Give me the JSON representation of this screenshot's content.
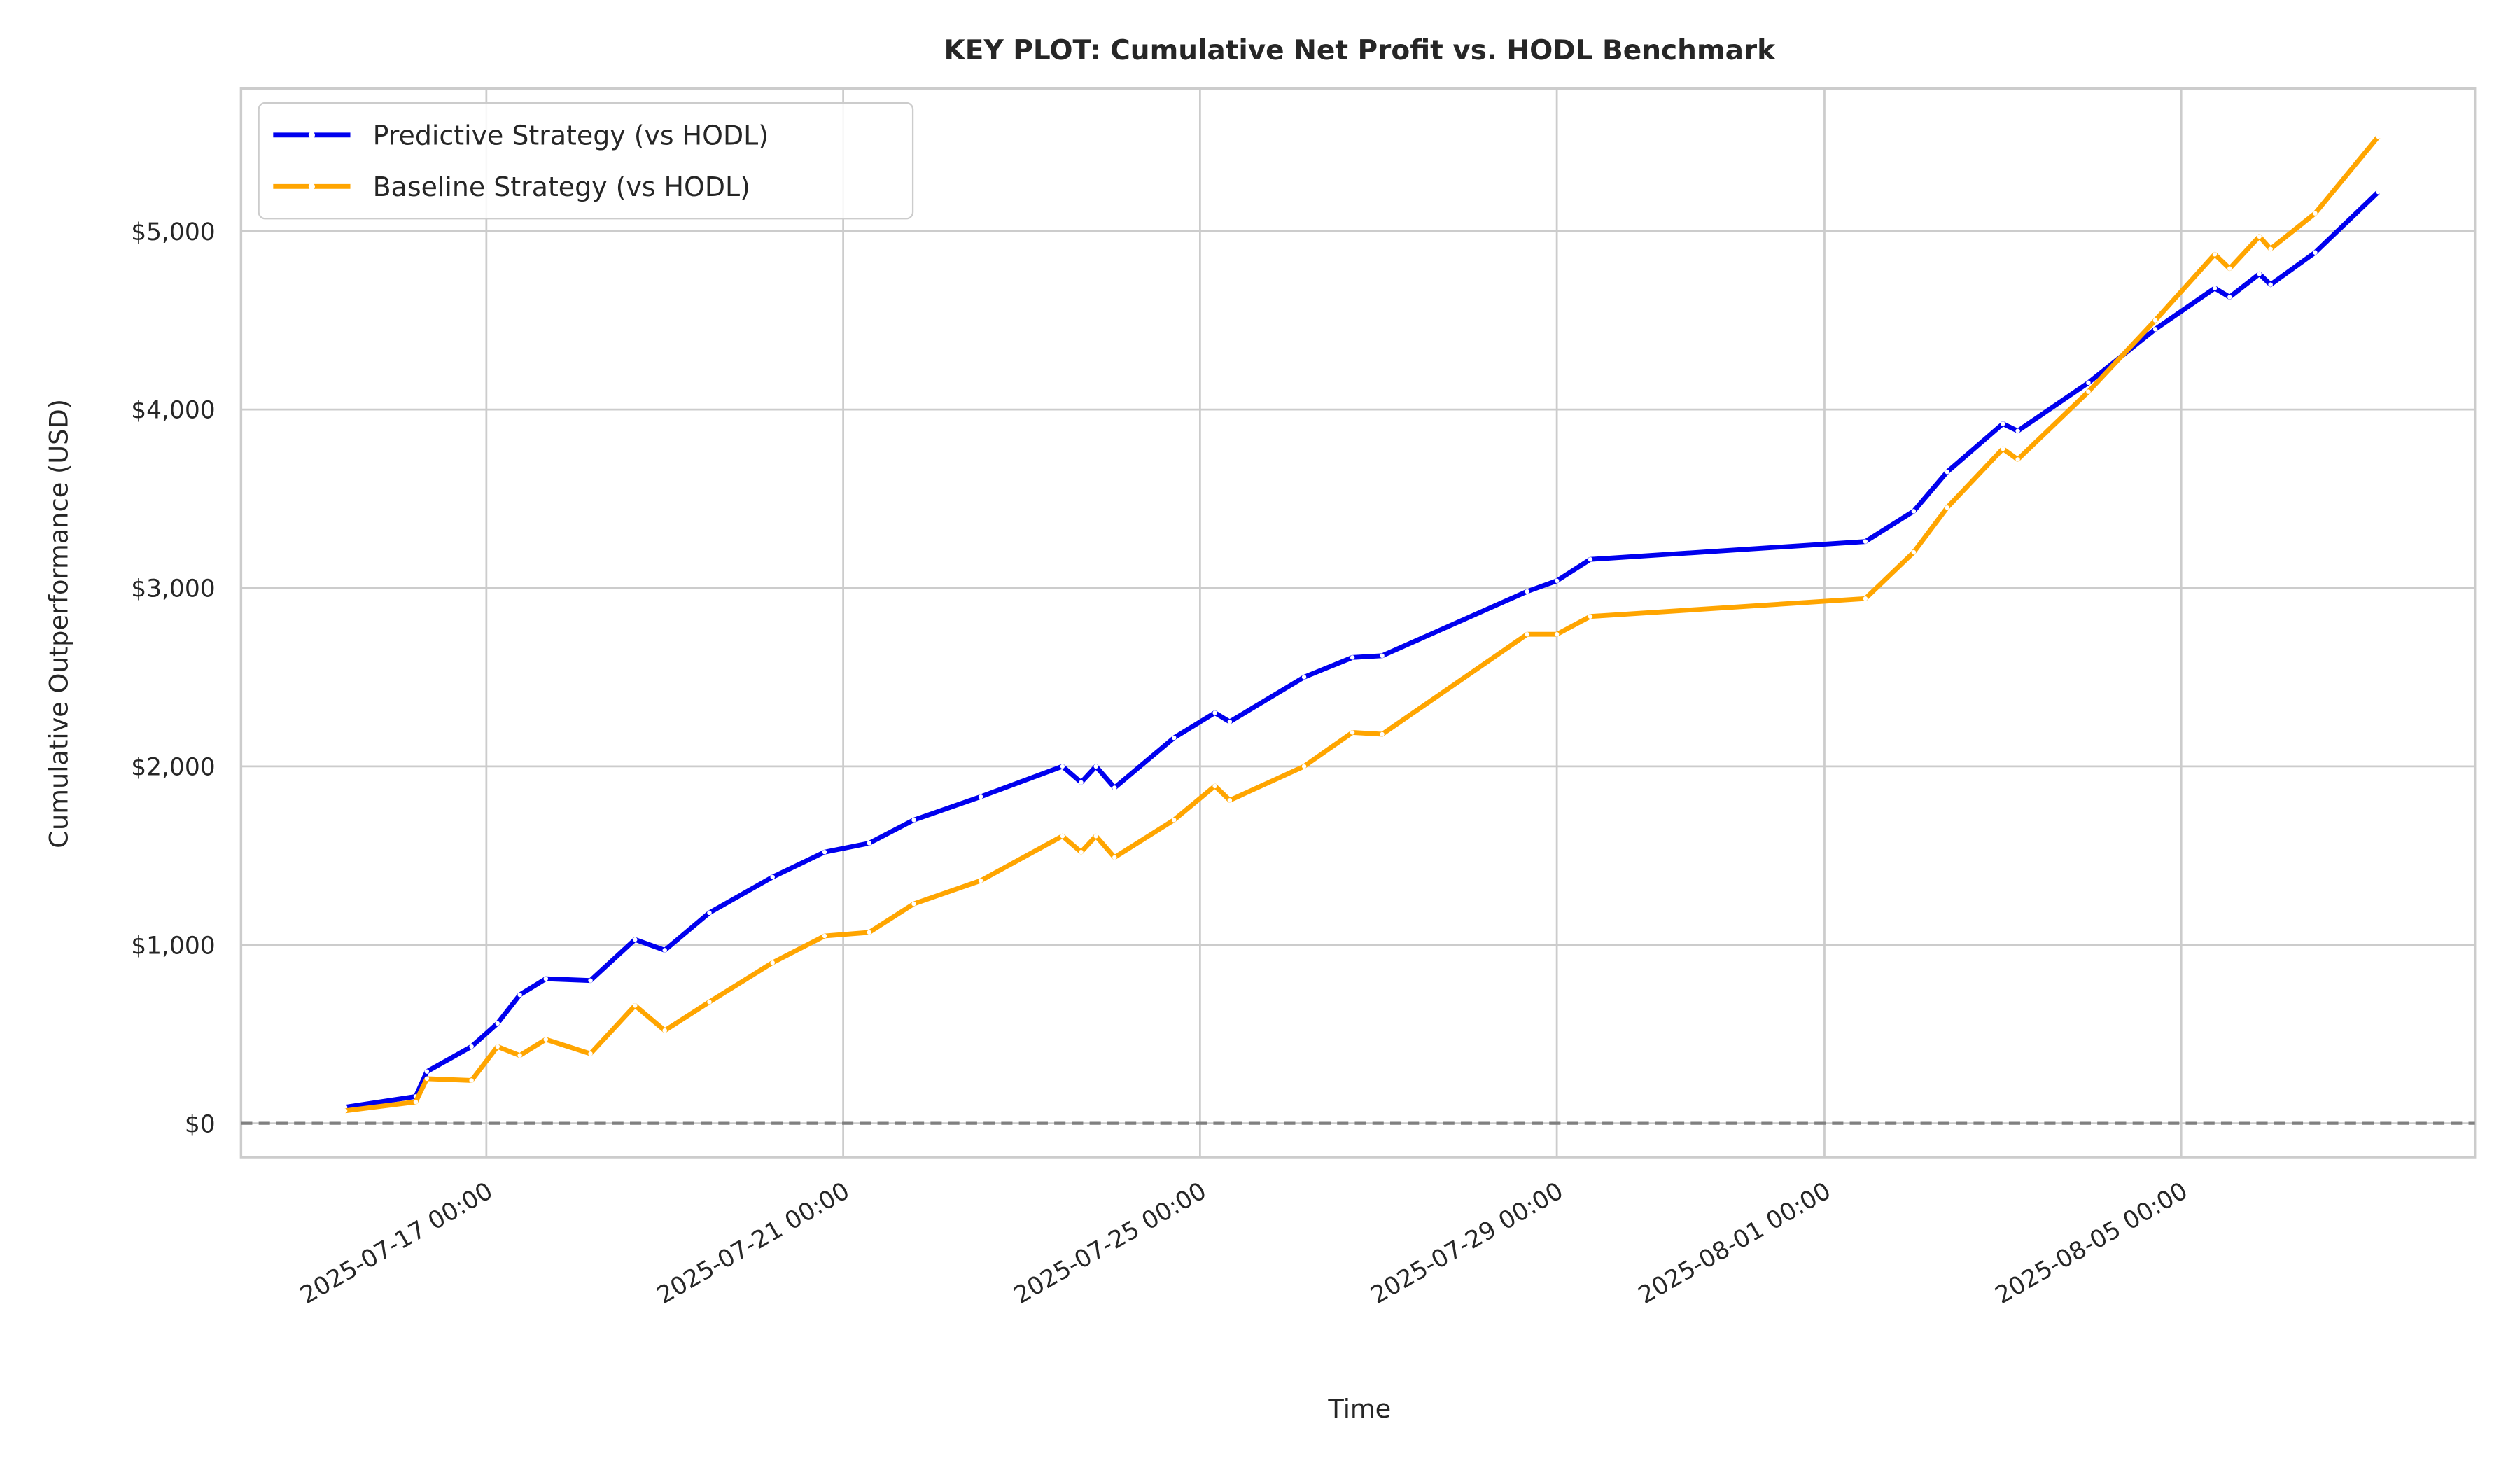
{
  "chart_data": {
    "type": "line",
    "title": "KEY PLOT: Cumulative Net Profit vs. HODL Benchmark",
    "x_label": "Time",
    "y_label": "Cumulative Outperformance (USD)",
    "x": [
      "2025-07-15 10:00",
      "2025-07-16 05:00",
      "2025-07-16 08:00",
      "2025-07-16 20:00",
      "2025-07-17 03:00",
      "2025-07-17 09:00",
      "2025-07-17 16:00",
      "2025-07-18 04:00",
      "2025-07-18 16:00",
      "2025-07-19 00:00",
      "2025-07-19 12:00",
      "2025-07-20 05:00",
      "2025-07-20 19:00",
      "2025-07-21 07:00",
      "2025-07-21 19:00",
      "2025-07-22 13:00",
      "2025-07-23 11:00",
      "2025-07-23 16:00",
      "2025-07-23 20:00",
      "2025-07-24 01:00",
      "2025-07-24 17:00",
      "2025-07-25 04:00",
      "2025-07-25 08:00",
      "2025-07-26 04:00",
      "2025-07-26 17:00",
      "2025-07-27 01:00",
      "2025-07-28 16:00",
      "2025-07-29 00:00",
      "2025-07-29 09:00",
      "2025-08-01 11:00",
      "2025-08-02 00:00",
      "2025-08-02 09:00",
      "2025-08-03 00:00",
      "2025-08-03 04:00",
      "2025-08-03 23:00",
      "2025-08-04 17:00",
      "2025-08-05 09:00",
      "2025-08-05 13:00",
      "2025-08-05 21:00",
      "2025-08-06 00:00",
      "2025-08-06 12:00",
      "2025-08-07 05:00"
    ],
    "series": [
      {
        "name": "Predictive Strategy (vs HODL)",
        "color": "#0000ee",
        "values": [
          90,
          150,
          290,
          430,
          560,
          720,
          810,
          800,
          1030,
          970,
          1180,
          1380,
          1520,
          1570,
          1700,
          1830,
          2000,
          1910,
          2000,
          1880,
          2160,
          2300,
          2250,
          2500,
          2610,
          2620,
          2980,
          3040,
          3160,
          3260,
          3430,
          3650,
          3920,
          3880,
          4150,
          4450,
          4680,
          4630,
          4760,
          4700,
          4880,
          5220
        ]
      },
      {
        "name": "Baseline Strategy (vs HODL)",
        "color": "#ffa500",
        "values": [
          70,
          120,
          250,
          240,
          430,
          380,
          470,
          390,
          660,
          520,
          680,
          900,
          1050,
          1070,
          1230,
          1360,
          1610,
          1520,
          1610,
          1490,
          1700,
          1890,
          1810,
          2000,
          2190,
          2180,
          2740,
          2740,
          2840,
          2940,
          3200,
          3450,
          3780,
          3720,
          4100,
          4500,
          4870,
          4790,
          4970,
          4900,
          5100,
          5530
        ]
      }
    ],
    "xlim": [
      "2025-07-14 06:00",
      "2025-08-08 07:00"
    ],
    "xticks": [
      "2025-07-17 00:00",
      "2025-07-21 00:00",
      "2025-07-25 00:00",
      "2025-07-29 00:00",
      "2025-08-01 00:00",
      "2025-08-05 00:00"
    ],
    "ylim": [
      -190,
      5800
    ],
    "yticks": [
      {
        "value": 0,
        "label": "$0"
      },
      {
        "value": 1000,
        "label": "$1,000"
      },
      {
        "value": 2000,
        "label": "$2,000"
      },
      {
        "value": 3000,
        "label": "$3,000"
      },
      {
        "value": 4000,
        "label": "$4,000"
      },
      {
        "value": 5000,
        "label": "$5,000"
      }
    ],
    "reference_line": 0,
    "grid": true,
    "legend": "upper left"
  }
}
